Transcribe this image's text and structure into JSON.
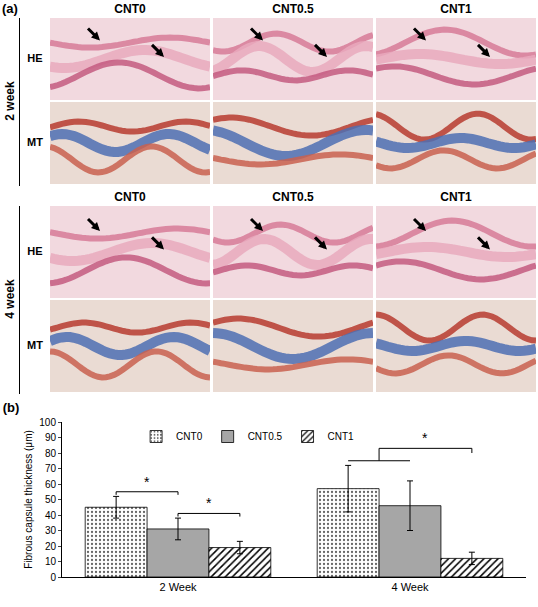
{
  "chart_data": {
    "type": "bar",
    "title": "(b)",
    "categories": [
      "2 Week",
      "4 Week"
    ],
    "series": [
      {
        "name": "CNT0",
        "color": "#ffffff",
        "marker": "dots",
        "values": [
          45,
          57
        ],
        "errors": [
          7,
          15
        ]
      },
      {
        "name": "CNT0.5",
        "color": "#a6a6a6",
        "marker": "solid",
        "values": [
          31,
          46
        ],
        "errors": [
          7,
          16
        ]
      },
      {
        "name": "CNT1",
        "color": "#ffffff",
        "marker": "hatch",
        "values": [
          19,
          12
        ],
        "errors": [
          4,
          4
        ]
      }
    ],
    "y_label": "Fibrous capsule thickness (μm)",
    "ylim": [
      0,
      100
    ],
    "yticks": [
      0,
      10,
      20,
      30,
      40,
      50,
      60,
      70,
      80,
      90,
      100
    ],
    "grid": false,
    "legend": "top",
    "significance": [
      {
        "category": "2 Week",
        "from": "CNT0",
        "to": "CNT0.5",
        "text": "*"
      },
      {
        "category": "2 Week",
        "from": "CNT0.5",
        "to": "CNT1",
        "text": "*"
      },
      {
        "category": "4 Week",
        "from": [
          "CNT0",
          "CNT0.5"
        ],
        "to": "CNT1",
        "text": "*"
      }
    ]
  },
  "figure": {
    "label": "(a)",
    "columns": [
      "CNT0",
      "CNT0.5",
      "CNT1"
    ],
    "blocks": [
      {
        "label": "2 week",
        "rows": [
          "HE",
          "MT"
        ]
      },
      {
        "label": "4 week",
        "rows": [
          "HE",
          "MT"
        ]
      }
    ]
  }
}
